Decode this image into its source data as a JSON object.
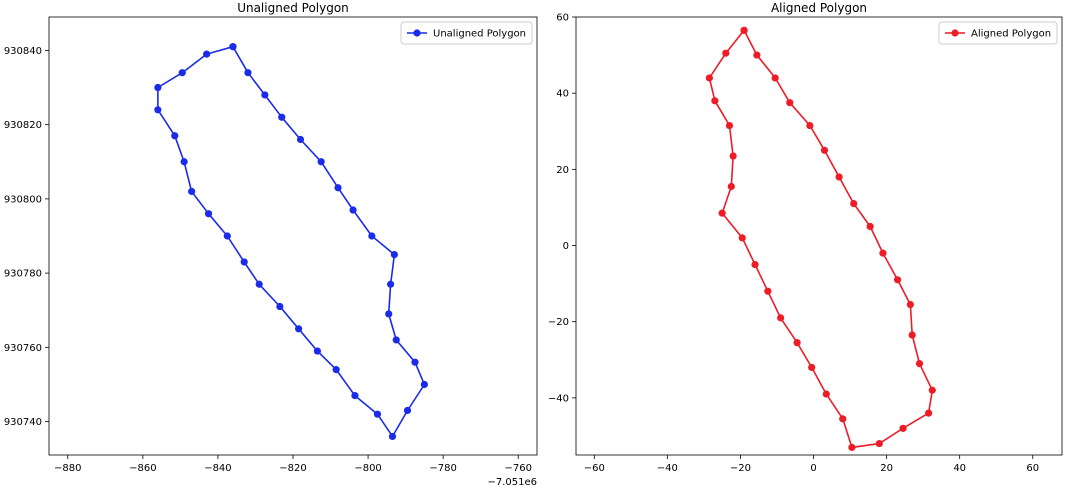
{
  "chart_data": [
    {
      "type": "line",
      "title": "Unaligned Polygon",
      "xlabel": "",
      "ylabel": "",
      "x_offset_label": "−7.051e6",
      "xlim": [
        -885,
        -755
      ],
      "ylim": [
        930731,
        930849
      ],
      "xticks": [
        -880,
        -860,
        -840,
        -820,
        -800,
        -780,
        -760
      ],
      "xtick_labels": [
        "−880",
        "−860",
        "−840",
        "−820",
        "−800",
        "−780",
        "−760"
      ],
      "yticks": [
        930740,
        930760,
        930780,
        930800,
        930820,
        930840
      ],
      "ytick_labels": [
        "930740",
        "930760",
        "930780",
        "930800",
        "930820",
        "930840"
      ],
      "grid": false,
      "legend_position": "top-right",
      "series": [
        {
          "name": "Unaligned Polygon",
          "color": "#1a2bea",
          "marker": "circle",
          "x": [
            -836.0,
            -832.0,
            -827.5,
            -823.0,
            -818.0,
            -812.5,
            -808.0,
            -804.0,
            -799.0,
            -793.0,
            -794.0,
            -794.5,
            -792.5,
            -787.5,
            -785.0,
            -789.5,
            -793.5,
            -797.5,
            -803.5,
            -808.5,
            -813.5,
            -818.5,
            -823.5,
            -829.0,
            -833.0,
            -837.5,
            -842.5,
            -847.0,
            -849.0,
            -851.5,
            -856.0,
            -856.0,
            -849.5,
            -843.0,
            -836.0
          ],
          "y": [
            930841,
            930834,
            930828,
            930822,
            930816,
            930810,
            930803,
            930797,
            930790,
            930785,
            930777,
            930769,
            930762,
            930756,
            930750,
            930743,
            930736,
            930742,
            930747,
            930754,
            930759,
            930765,
            930771,
            930777,
            930783,
            930790,
            930796,
            930802,
            930810,
            930817,
            930824,
            930830,
            930834,
            930839,
            930841
          ]
        }
      ]
    },
    {
      "type": "line",
      "title": "Aligned Polygon",
      "xlabel": "",
      "ylabel": "",
      "xlim": [
        -65,
        68
      ],
      "ylim": [
        -55,
        60
      ],
      "xticks": [
        -60,
        -40,
        -20,
        0,
        20,
        40,
        60
      ],
      "xtick_labels": [
        "−60",
        "−40",
        "−20",
        "0",
        "20",
        "40",
        "60"
      ],
      "yticks": [
        -40,
        -20,
        0,
        20,
        40,
        60
      ],
      "ytick_labels": [
        "−40",
        "−20",
        "0",
        "20",
        "40",
        "60"
      ],
      "grid": false,
      "legend_position": "top-right",
      "series": [
        {
          "name": "Aligned Polygon",
          "color": "#ee1c27",
          "marker": "circle",
          "x": [
            -19.0,
            -15.5,
            -10.5,
            -6.5,
            -1.0,
            3.0,
            7.0,
            11.0,
            15.5,
            19.0,
            23.0,
            26.5,
            27.0,
            29.0,
            32.5,
            31.5,
            24.5,
            18.0,
            10.5,
            8.0,
            3.5,
            -0.5,
            -4.5,
            -9.0,
            -12.5,
            -16.0,
            -19.5,
            -25.0,
            -22.5,
            -22.0,
            -23.0,
            -27.0,
            -28.5,
            -24.0,
            -19.0
          ],
          "y": [
            56.5,
            50.0,
            44.0,
            37.5,
            31.5,
            25.0,
            18.0,
            11.0,
            5.0,
            -2.0,
            -9.0,
            -15.5,
            -23.5,
            -31.0,
            -38.0,
            -44.0,
            -48.0,
            -52.0,
            -53.0,
            -45.5,
            -39.0,
            -32.0,
            -25.5,
            -19.0,
            -12.0,
            -5.0,
            2.0,
            8.5,
            15.5,
            23.5,
            31.5,
            38.0,
            44.0,
            50.5,
            56.5
          ]
        }
      ]
    }
  ]
}
